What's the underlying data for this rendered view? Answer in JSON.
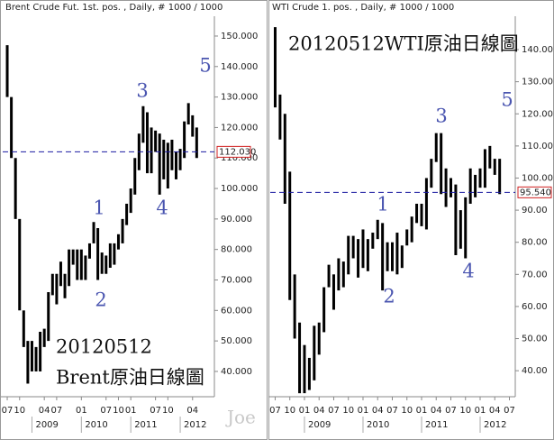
{
  "chart_data": [
    {
      "type": "range_bar",
      "title": "Brent Crude Fut. 1st. pos. , Daily, # 1000 / 1000",
      "caption": [
        "20120512",
        "Brent原油日線圖"
      ],
      "wave_labels": [
        "1",
        "2",
        "3",
        "4",
        "5"
      ],
      "x": [
        0,
        1,
        2,
        3,
        4,
        5,
        6,
        7,
        8,
        9,
        10,
        11,
        12,
        13,
        14,
        15,
        16,
        17,
        18,
        19,
        20,
        21,
        22,
        23,
        24,
        25,
        26,
        27,
        28,
        29,
        30,
        31,
        32,
        33,
        34,
        35,
        36,
        37,
        38,
        39,
        40,
        41,
        42,
        43,
        44,
        45,
        46
      ],
      "low": [
        130,
        110,
        90,
        60,
        48,
        36,
        40,
        40,
        40,
        48,
        50,
        65,
        62,
        68,
        64,
        68,
        75,
        70,
        70,
        70,
        77,
        82,
        70,
        72,
        72,
        74,
        75,
        80,
        82,
        88,
        92,
        98,
        106,
        115,
        105,
        105,
        112,
        98,
        103,
        100,
        106,
        103,
        106,
        110,
        121,
        117,
        110
      ],
      "high": [
        147,
        130,
        110,
        90,
        60,
        50,
        50,
        48,
        53,
        54,
        66,
        72,
        72,
        76,
        72,
        80,
        80,
        80,
        80,
        78,
        82,
        89,
        87,
        79,
        78,
        82,
        82,
        85,
        90,
        95,
        100,
        110,
        118,
        127,
        125,
        120,
        119,
        118,
        116,
        115,
        116,
        112,
        113,
        122,
        128,
        124,
        120
      ],
      "color": "#000000",
      "last_price": {
        "value": 112.03,
        "label": "112.030"
      },
      "xlim": [
        -1.1,
        50.3
      ],
      "ylim": [
        31.7,
        156.5
      ],
      "yticks": [
        {
          "value": 40,
          "label": "40.000"
        },
        {
          "value": 50,
          "label": "50.000"
        },
        {
          "value": 60,
          "label": "60.000"
        },
        {
          "value": 70,
          "label": "70.000"
        },
        {
          "value": 80,
          "label": "80.000"
        },
        {
          "value": 90,
          "label": "90.000"
        },
        {
          "value": 100,
          "label": "100.000"
        },
        {
          "value": 110,
          "label": "110.000"
        },
        {
          "value": 120,
          "label": "120.000"
        },
        {
          "value": 130,
          "label": "130.000"
        },
        {
          "value": 140,
          "label": "140.000"
        },
        {
          "value": 150,
          "label": "150.000"
        }
      ],
      "xticks": [
        {
          "value": 0,
          "label": "07"
        },
        {
          "value": 3,
          "label": "10"
        },
        {
          "value": 9,
          "label": "04"
        },
        {
          "value": 12,
          "label": "07"
        },
        {
          "value": 18,
          "label": "01"
        },
        {
          "value": 24,
          "label": "07"
        },
        {
          "value": 27,
          "label": "10"
        },
        {
          "value": 30,
          "label": "01"
        },
        {
          "value": 36,
          "label": "07"
        },
        {
          "value": 39,
          "label": "10"
        },
        {
          "value": 45,
          "label": "04"
        }
      ],
      "year_ticks": [
        {
          "value": 6,
          "label": "2009"
        },
        {
          "value": 18,
          "label": "2010"
        },
        {
          "value": 30,
          "label": "2011"
        },
        {
          "value": 42,
          "label": "2012"
        }
      ]
    },
    {
      "type": "range_bar",
      "title": "WTI Crude 1. pos. , Daily, # 1000 / 1000",
      "caption": [
        "20120512WTI原油日線圖"
      ],
      "wave_labels": [
        "1",
        "2",
        "3",
        "4",
        "5"
      ],
      "x": [
        0,
        1,
        2,
        3,
        4,
        5,
        6,
        7,
        8,
        9,
        10,
        11,
        12,
        13,
        14,
        15,
        16,
        17,
        18,
        19,
        20,
        21,
        22,
        23,
        24,
        25,
        26,
        27,
        28,
        29,
        30,
        31,
        32,
        33,
        34,
        35,
        36,
        37,
        38,
        39,
        40,
        41,
        42,
        43,
        44,
        45,
        46
      ],
      "low": [
        122,
        112,
        92,
        62,
        50,
        33,
        33,
        34,
        37,
        45,
        52,
        66,
        59,
        65,
        66,
        70,
        75,
        69,
        72,
        71,
        78,
        81,
        65,
        71,
        71,
        70,
        72,
        79,
        80,
        86,
        85,
        84,
        97,
        105,
        95,
        91,
        94,
        76,
        78,
        75,
        92,
        94,
        97,
        97,
        103,
        101,
        95
      ],
      "high": [
        147,
        126,
        120,
        102,
        70,
        55,
        48,
        44,
        54,
        55,
        66,
        73,
        70,
        75,
        74,
        82,
        82,
        81,
        84,
        81,
        83,
        87,
        86,
        80,
        80,
        83,
        79,
        84,
        88,
        92,
        92,
        100,
        106,
        114,
        114,
        103,
        100,
        98,
        90,
        94,
        103,
        101,
        103,
        109,
        110,
        106,
        106
      ],
      "color": "#000000",
      "last_price": {
        "value": 95.54,
        "label": "95.540"
      },
      "xlim": [
        -1.01,
        49.2
      ],
      "ylim": [
        31.9,
        150.4
      ],
      "yticks": [
        {
          "value": 40,
          "label": "40.00"
        },
        {
          "value": 50,
          "label": "50.00"
        },
        {
          "value": 60,
          "label": "60.00"
        },
        {
          "value": 70,
          "label": "70.00"
        },
        {
          "value": 80,
          "label": "80.00"
        },
        {
          "value": 90,
          "label": "90.00"
        },
        {
          "value": 100,
          "label": "100.00"
        },
        {
          "value": 110,
          "label": "110.00"
        },
        {
          "value": 120,
          "label": "120.00"
        },
        {
          "value": 130,
          "label": "130.00"
        },
        {
          "value": 140,
          "label": "140.00"
        }
      ],
      "xticks": [
        {
          "value": 0,
          "label": "07"
        },
        {
          "value": 3,
          "label": "10"
        },
        {
          "value": 6,
          "label": "01"
        },
        {
          "value": 9,
          "label": "04"
        },
        {
          "value": 12,
          "label": "07"
        },
        {
          "value": 15,
          "label": "10"
        },
        {
          "value": 18,
          "label": "01"
        },
        {
          "value": 21,
          "label": "04"
        },
        {
          "value": 24,
          "label": "07"
        },
        {
          "value": 27,
          "label": "10"
        },
        {
          "value": 30,
          "label": "01"
        },
        {
          "value": 33,
          "label": "04"
        },
        {
          "value": 36,
          "label": "07"
        },
        {
          "value": 39,
          "label": "10"
        },
        {
          "value": 42,
          "label": "01"
        },
        {
          "value": 45,
          "label": "04"
        },
        {
          "value": 48,
          "label": "07"
        }
      ],
      "year_ticks": [
        {
          "value": 6,
          "label": "2009"
        },
        {
          "value": 18,
          "label": "2010"
        },
        {
          "value": 30,
          "label": "2011"
        },
        {
          "value": 42,
          "label": "2012"
        }
      ]
    }
  ],
  "watermark": "Joe"
}
